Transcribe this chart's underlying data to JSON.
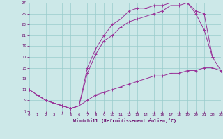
{
  "xlabel": "Windchill (Refroidissement éolien,°C)",
  "bg_color": "#cce8e8",
  "line_color": "#993399",
  "grid_color": "#99cccc",
  "ylim": [
    7,
    27
  ],
  "xlim": [
    0,
    23
  ],
  "yticks": [
    7,
    9,
    11,
    13,
    15,
    17,
    19,
    21,
    23,
    25,
    27
  ],
  "xticks": [
    0,
    1,
    2,
    3,
    4,
    5,
    6,
    7,
    8,
    9,
    10,
    11,
    12,
    13,
    14,
    15,
    16,
    17,
    18,
    19,
    20,
    21,
    22,
    23
  ],
  "line_A_x": [
    0,
    1,
    2,
    3,
    4,
    5,
    6,
    7,
    8,
    9,
    10,
    11,
    12,
    13,
    14,
    15,
    16,
    17,
    18,
    19,
    20,
    21,
    22,
    23
  ],
  "line_A_y": [
    11,
    10,
    9,
    8.5,
    8,
    7.5,
    8,
    9,
    10,
    10.5,
    11,
    11.5,
    12,
    12.5,
    13,
    13.5,
    13.5,
    14,
    14,
    14.5,
    14.5,
    15,
    15,
    14.5
  ],
  "line_B_x": [
    0,
    1,
    2,
    3,
    4,
    5,
    6,
    7,
    8,
    9,
    10,
    11,
    12,
    13,
    14,
    15,
    16,
    17,
    18,
    19,
    20,
    21,
    22
  ],
  "line_B_y": [
    11,
    10,
    9,
    8.5,
    8,
    7.5,
    8,
    15,
    18.5,
    21,
    23,
    24,
    25.5,
    26,
    26,
    26.5,
    26.5,
    27,
    27,
    27,
    25,
    22,
    17
  ],
  "line_C_x": [
    1,
    2,
    3,
    4,
    5,
    6,
    7,
    8,
    9,
    10,
    11,
    12,
    13,
    14,
    15,
    16,
    17,
    18,
    19,
    20,
    21,
    22,
    23
  ],
  "line_C_y": [
    10,
    9,
    8.5,
    8,
    7.5,
    8,
    14,
    17.5,
    20,
    21,
    22.5,
    23.5,
    24,
    24.5,
    25,
    25.5,
    26.5,
    26.5,
    27,
    25.5,
    25,
    17,
    14.5
  ]
}
